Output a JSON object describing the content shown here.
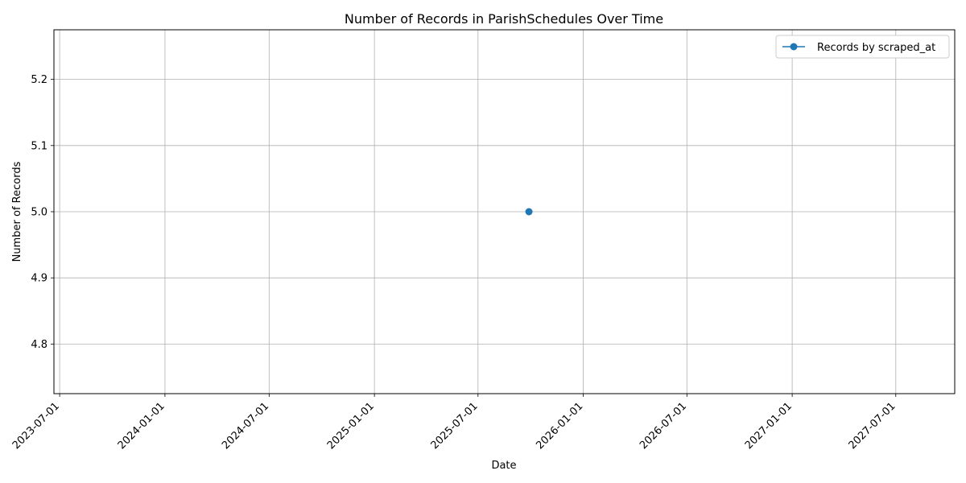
{
  "chart_data": {
    "type": "line",
    "title": "Number of Records in ParishSchedules Over Time",
    "xlabel": "Date",
    "ylabel": "Number of Records",
    "x_ticks": [
      "2023-07-01",
      "2024-01-01",
      "2024-07-01",
      "2025-01-01",
      "2025-07-01",
      "2026-01-01",
      "2026-07-01",
      "2027-01-01",
      "2027-07-01"
    ],
    "y_ticks": [
      4.8,
      4.9,
      5.0,
      5.1,
      5.2
    ],
    "xlim": [
      "2023-06-21",
      "2027-10-12"
    ],
    "ylim": [
      4.725,
      5.275
    ],
    "grid": true,
    "legend_position": "top-right",
    "series": [
      {
        "name": "Records by scraped_at",
        "color": "#1f77b4",
        "marker": "circle",
        "points": [
          {
            "x": "2025-09-28",
            "y": 5
          }
        ]
      }
    ]
  }
}
